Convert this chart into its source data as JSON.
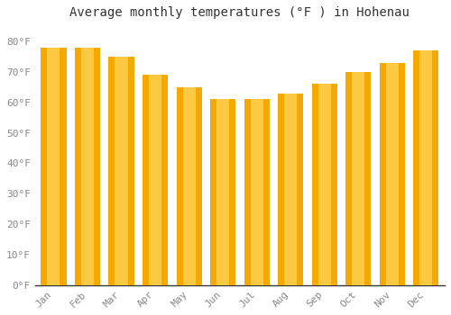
{
  "months": [
    "Jan",
    "Feb",
    "Mar",
    "Apr",
    "May",
    "Jun",
    "Jul",
    "Aug",
    "Sep",
    "Oct",
    "Nov",
    "Dec"
  ],
  "values": [
    78,
    78,
    75,
    69,
    65,
    61,
    61,
    63,
    66,
    70,
    73,
    77
  ],
  "bar_color_outer": "#F5A800",
  "bar_color_inner": "#FFD050",
  "background_color": "#FFFFFF",
  "plot_bg_color": "#FFFFFF",
  "grid_color": "#CCCCCC",
  "title": "Average monthly temperatures (°F ) in Hohenau",
  "title_fontsize": 10,
  "ylabel_ticks": [
    "0°F",
    "10°F",
    "20°F",
    "30°F",
    "40°F",
    "50°F",
    "60°F",
    "70°F",
    "80°F"
  ],
  "ytick_values": [
    0,
    10,
    20,
    30,
    40,
    50,
    60,
    70,
    80
  ],
  "ylim": [
    0,
    85
  ],
  "tick_color": "#888888",
  "tick_fontsize": 8,
  "bar_width": 0.75,
  "figsize": [
    5.0,
    3.5
  ],
  "dpi": 100
}
